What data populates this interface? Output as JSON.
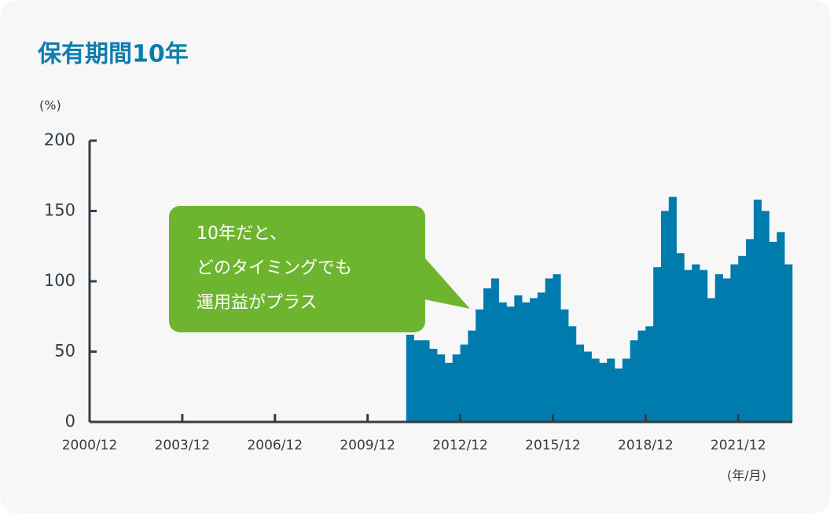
{
  "chart_data": {
    "type": "bar",
    "title": "保有期間10年",
    "y_unit": "(%)",
    "x_unit": "(年/月)",
    "callout": [
      "10年だと、",
      "どのタイミングでも",
      "運用益がプラス"
    ],
    "x": [
      "2011/03",
      "2011/06",
      "2011/09",
      "2011/12",
      "2012/03",
      "2012/06",
      "2012/09",
      "2012/12",
      "2013/03",
      "2013/06",
      "2013/09",
      "2013/12",
      "2014/03",
      "2014/06",
      "2014/09",
      "2014/12",
      "2015/03",
      "2015/06",
      "2015/09",
      "2015/12",
      "2016/03",
      "2016/06",
      "2016/09",
      "2016/12",
      "2017/03",
      "2017/06",
      "2017/09",
      "2017/12",
      "2018/03",
      "2018/06",
      "2018/09",
      "2018/12",
      "2019/03",
      "2019/06",
      "2019/09",
      "2019/12",
      "2020/03",
      "2020/06",
      "2020/09",
      "2020/12",
      "2021/03",
      "2021/06",
      "2021/09",
      "2021/12",
      "2022/03",
      "2022/06",
      "2022/09",
      "2022/12",
      "2023/03",
      "2023/06"
    ],
    "values": [
      62,
      58,
      58,
      52,
      48,
      42,
      48,
      55,
      65,
      80,
      95,
      102,
      85,
      82,
      90,
      85,
      88,
      92,
      102,
      105,
      80,
      68,
      55,
      50,
      45,
      42,
      45,
      38,
      45,
      58,
      65,
      68,
      110,
      150,
      160,
      120,
      108,
      112,
      108,
      88,
      105,
      102,
      112,
      118,
      130,
      158,
      150,
      128,
      135,
      112
    ],
    "color": "#007bad",
    "xlim": [
      "2000/12",
      "2023/09"
    ],
    "xticks": [
      "2000/12",
      "2003/12",
      "2006/12",
      "2009/12",
      "2012/12",
      "2015/12",
      "2018/12",
      "2021/12"
    ],
    "ylim": [
      0,
      200
    ],
    "yticks": [
      0,
      50,
      100,
      150,
      200
    ]
  }
}
